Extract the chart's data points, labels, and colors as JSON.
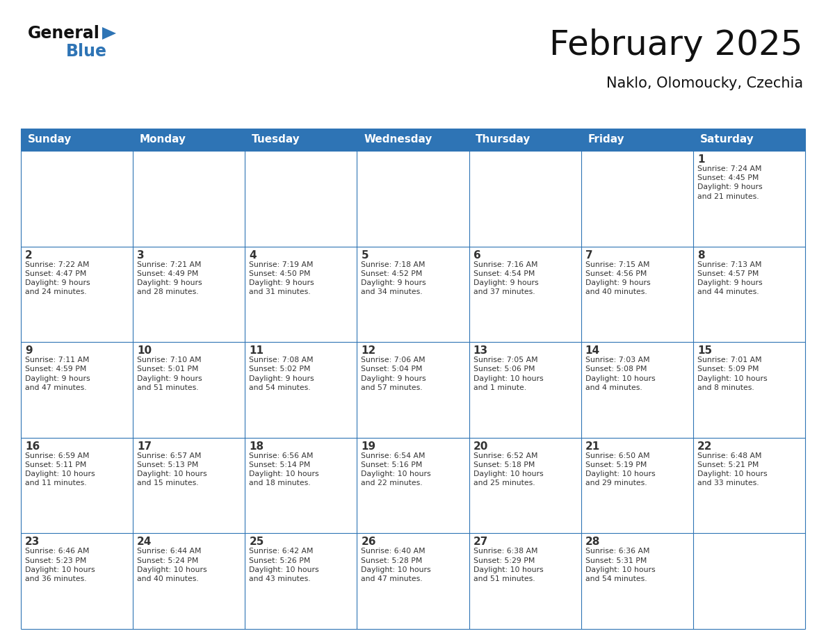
{
  "title": "February 2025",
  "subtitle": "Naklo, Olomoucky, Czechia",
  "header_bg": "#2E74B5",
  "header_text_color": "#FFFFFF",
  "cell_bg_white": "#FFFFFF",
  "cell_bg_gray": "#F0F0F0",
  "border_color": "#2E74B5",
  "text_color": "#333333",
  "days_of_week": [
    "Sunday",
    "Monday",
    "Tuesday",
    "Wednesday",
    "Thursday",
    "Friday",
    "Saturday"
  ],
  "calendar": [
    [
      {
        "day": "",
        "sunrise": "",
        "sunset": "",
        "daylight": ""
      },
      {
        "day": "",
        "sunrise": "",
        "sunset": "",
        "daylight": ""
      },
      {
        "day": "",
        "sunrise": "",
        "sunset": "",
        "daylight": ""
      },
      {
        "day": "",
        "sunrise": "",
        "sunset": "",
        "daylight": ""
      },
      {
        "day": "",
        "sunrise": "",
        "sunset": "",
        "daylight": ""
      },
      {
        "day": "",
        "sunrise": "",
        "sunset": "",
        "daylight": ""
      },
      {
        "day": "1",
        "sunrise": "Sunrise: 7:24 AM",
        "sunset": "Sunset: 4:45 PM",
        "daylight": "Daylight: 9 hours\nand 21 minutes."
      }
    ],
    [
      {
        "day": "2",
        "sunrise": "Sunrise: 7:22 AM",
        "sunset": "Sunset: 4:47 PM",
        "daylight": "Daylight: 9 hours\nand 24 minutes."
      },
      {
        "day": "3",
        "sunrise": "Sunrise: 7:21 AM",
        "sunset": "Sunset: 4:49 PM",
        "daylight": "Daylight: 9 hours\nand 28 minutes."
      },
      {
        "day": "4",
        "sunrise": "Sunrise: 7:19 AM",
        "sunset": "Sunset: 4:50 PM",
        "daylight": "Daylight: 9 hours\nand 31 minutes."
      },
      {
        "day": "5",
        "sunrise": "Sunrise: 7:18 AM",
        "sunset": "Sunset: 4:52 PM",
        "daylight": "Daylight: 9 hours\nand 34 minutes."
      },
      {
        "day": "6",
        "sunrise": "Sunrise: 7:16 AM",
        "sunset": "Sunset: 4:54 PM",
        "daylight": "Daylight: 9 hours\nand 37 minutes."
      },
      {
        "day": "7",
        "sunrise": "Sunrise: 7:15 AM",
        "sunset": "Sunset: 4:56 PM",
        "daylight": "Daylight: 9 hours\nand 40 minutes."
      },
      {
        "day": "8",
        "sunrise": "Sunrise: 7:13 AM",
        "sunset": "Sunset: 4:57 PM",
        "daylight": "Daylight: 9 hours\nand 44 minutes."
      }
    ],
    [
      {
        "day": "9",
        "sunrise": "Sunrise: 7:11 AM",
        "sunset": "Sunset: 4:59 PM",
        "daylight": "Daylight: 9 hours\nand 47 minutes."
      },
      {
        "day": "10",
        "sunrise": "Sunrise: 7:10 AM",
        "sunset": "Sunset: 5:01 PM",
        "daylight": "Daylight: 9 hours\nand 51 minutes."
      },
      {
        "day": "11",
        "sunrise": "Sunrise: 7:08 AM",
        "sunset": "Sunset: 5:02 PM",
        "daylight": "Daylight: 9 hours\nand 54 minutes."
      },
      {
        "day": "12",
        "sunrise": "Sunrise: 7:06 AM",
        "sunset": "Sunset: 5:04 PM",
        "daylight": "Daylight: 9 hours\nand 57 minutes."
      },
      {
        "day": "13",
        "sunrise": "Sunrise: 7:05 AM",
        "sunset": "Sunset: 5:06 PM",
        "daylight": "Daylight: 10 hours\nand 1 minute."
      },
      {
        "day": "14",
        "sunrise": "Sunrise: 7:03 AM",
        "sunset": "Sunset: 5:08 PM",
        "daylight": "Daylight: 10 hours\nand 4 minutes."
      },
      {
        "day": "15",
        "sunrise": "Sunrise: 7:01 AM",
        "sunset": "Sunset: 5:09 PM",
        "daylight": "Daylight: 10 hours\nand 8 minutes."
      }
    ],
    [
      {
        "day": "16",
        "sunrise": "Sunrise: 6:59 AM",
        "sunset": "Sunset: 5:11 PM",
        "daylight": "Daylight: 10 hours\nand 11 minutes."
      },
      {
        "day": "17",
        "sunrise": "Sunrise: 6:57 AM",
        "sunset": "Sunset: 5:13 PM",
        "daylight": "Daylight: 10 hours\nand 15 minutes."
      },
      {
        "day": "18",
        "sunrise": "Sunrise: 6:56 AM",
        "sunset": "Sunset: 5:14 PM",
        "daylight": "Daylight: 10 hours\nand 18 minutes."
      },
      {
        "day": "19",
        "sunrise": "Sunrise: 6:54 AM",
        "sunset": "Sunset: 5:16 PM",
        "daylight": "Daylight: 10 hours\nand 22 minutes."
      },
      {
        "day": "20",
        "sunrise": "Sunrise: 6:52 AM",
        "sunset": "Sunset: 5:18 PM",
        "daylight": "Daylight: 10 hours\nand 25 minutes."
      },
      {
        "day": "21",
        "sunrise": "Sunrise: 6:50 AM",
        "sunset": "Sunset: 5:19 PM",
        "daylight": "Daylight: 10 hours\nand 29 minutes."
      },
      {
        "day": "22",
        "sunrise": "Sunrise: 6:48 AM",
        "sunset": "Sunset: 5:21 PM",
        "daylight": "Daylight: 10 hours\nand 33 minutes."
      }
    ],
    [
      {
        "day": "23",
        "sunrise": "Sunrise: 6:46 AM",
        "sunset": "Sunset: 5:23 PM",
        "daylight": "Daylight: 10 hours\nand 36 minutes."
      },
      {
        "day": "24",
        "sunrise": "Sunrise: 6:44 AM",
        "sunset": "Sunset: 5:24 PM",
        "daylight": "Daylight: 10 hours\nand 40 minutes."
      },
      {
        "day": "25",
        "sunrise": "Sunrise: 6:42 AM",
        "sunset": "Sunset: 5:26 PM",
        "daylight": "Daylight: 10 hours\nand 43 minutes."
      },
      {
        "day": "26",
        "sunrise": "Sunrise: 6:40 AM",
        "sunset": "Sunset: 5:28 PM",
        "daylight": "Daylight: 10 hours\nand 47 minutes."
      },
      {
        "day": "27",
        "sunrise": "Sunrise: 6:38 AM",
        "sunset": "Sunset: 5:29 PM",
        "daylight": "Daylight: 10 hours\nand 51 minutes."
      },
      {
        "day": "28",
        "sunrise": "Sunrise: 6:36 AM",
        "sunset": "Sunset: 5:31 PM",
        "daylight": "Daylight: 10 hours\nand 54 minutes."
      },
      {
        "day": "",
        "sunrise": "",
        "sunset": "",
        "daylight": ""
      }
    ]
  ]
}
